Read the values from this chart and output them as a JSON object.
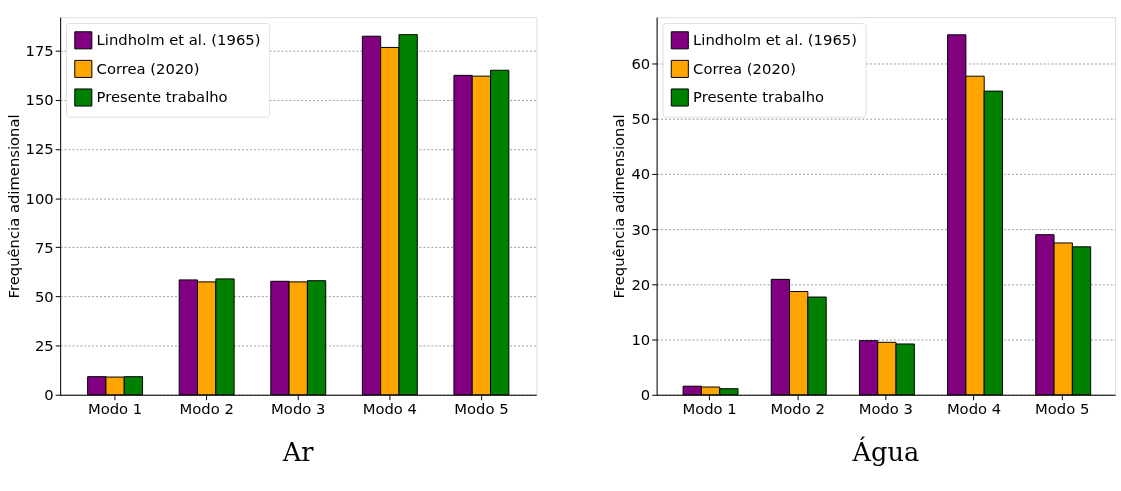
{
  "chart_data": [
    {
      "type": "bar",
      "title": "Ar",
      "ylabel": "Frequência adimensional",
      "categories": [
        "Modo 1",
        "Modo 2",
        "Modo 3",
        "Modo 4",
        "Modo 5"
      ],
      "series": [
        {
          "name": "Lindholm et al. (1965)",
          "color": "#800080",
          "values": [
            9.2,
            58.4,
            57.7,
            182.3,
            162.4
          ]
        },
        {
          "name": "Correa (2020)",
          "color": "#ffa500",
          "values": [
            9.0,
            57.4,
            57.4,
            176.6,
            162.0
          ]
        },
        {
          "name": "Presente trabalho",
          "color": "#008000",
          "values": [
            9.2,
            58.9,
            58.0,
            183.1,
            165.0
          ]
        }
      ],
      "ylim": [
        0,
        192
      ],
      "yticks": [
        0,
        25,
        50,
        75,
        100,
        125,
        150,
        175
      ],
      "grid": "y",
      "legend": "top left"
    },
    {
      "type": "bar",
      "title": "Água",
      "ylabel": "Frequência adimensional",
      "categories": [
        "Modo 1",
        "Modo 2",
        "Modo 3",
        "Modo 4",
        "Modo 5"
      ],
      "series": [
        {
          "name": "Lindholm et al. (1965)",
          "color": "#800080",
          "values": [
            1.55,
            20.9,
            9.8,
            65.2,
            29.0
          ]
        },
        {
          "name": "Correa (2020)",
          "color": "#ffa500",
          "values": [
            1.4,
            18.7,
            9.5,
            57.7,
            27.5
          ]
        },
        {
          "name": "Presente trabalho",
          "color": "#008000",
          "values": [
            1.1,
            17.7,
            9.2,
            55.0,
            26.8
          ]
        }
      ],
      "ylim": [
        0,
        68.4
      ],
      "yticks": [
        0,
        10,
        20,
        30,
        40,
        50,
        60
      ],
      "grid": "y",
      "legend": "top left"
    }
  ]
}
